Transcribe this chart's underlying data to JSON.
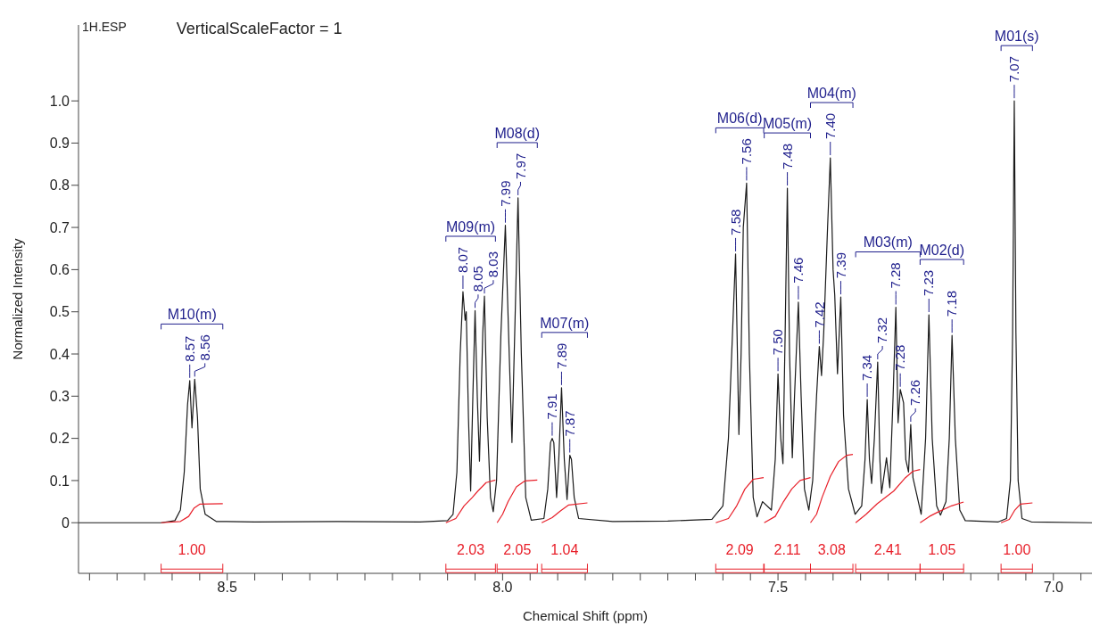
{
  "chart_data": {
    "type": "line",
    "xlabel": "Chemical Shift (ppm)",
    "ylabel": "Normalized Intensity",
    "xlim": [
      8.77,
      6.93
    ],
    "xticks": [
      {
        "value": 8.75,
        "label": null
      },
      {
        "value": 8.7,
        "label": null
      },
      {
        "value": 8.65,
        "label": null
      },
      {
        "value": 8.6,
        "label": null
      },
      {
        "value": 8.55,
        "label": null
      },
      8.5,
      {
        "value": 8.45,
        "label": null
      },
      {
        "value": 8.4,
        "label": null
      },
      {
        "value": 8.35,
        "label": null
      },
      {
        "value": 8.3,
        "label": null
      },
      {
        "value": 8.25,
        "label": null
      },
      {
        "value": 8.2,
        "label": null
      },
      {
        "value": 8.15,
        "label": null
      },
      {
        "value": 8.1,
        "label": null
      },
      {
        "value": 8.05,
        "label": null
      },
      {
        "value": 8,
        "label": "8.0"
      },
      {
        "value": 7.95,
        "label": null
      },
      {
        "value": 7.9,
        "label": null
      },
      {
        "value": 7.85,
        "label": null
      },
      {
        "value": 7.8,
        "label": null
      },
      {
        "value": 7.75,
        "label": null
      },
      {
        "value": 7.7,
        "label": null
      },
      {
        "value": 7.65,
        "label": null
      },
      {
        "value": 7.6,
        "label": null
      },
      {
        "value": 7.55,
        "label": null
      },
      7.5,
      {
        "value": 7.45,
        "label": null
      },
      {
        "value": 7.4,
        "label": null
      },
      {
        "value": 7.35,
        "label": null
      },
      {
        "value": 7.3,
        "label": null
      },
      {
        "value": 7.25,
        "label": null
      },
      {
        "value": 7.2,
        "label": null
      },
      {
        "value": 7.15,
        "label": null
      },
      {
        "value": 7.1,
        "label": null
      },
      {
        "value": 7.05,
        "label": null
      },
      {
        "value": 7,
        "label": "7.0"
      },
      {
        "value": 6.95,
        "label": null
      }
    ],
    "ylim": [
      -0.12,
      1.18
    ],
    "yticks": [
      0,
      0.1,
      0.2,
      0.3,
      0.4,
      0.5,
      0.6,
      0.7,
      0.8,
      0.9,
      {
        "value": 1,
        "label": "1.0"
      }
    ],
    "marker": "none",
    "line_style": "solid",
    "series": [
      {
        "color": "#1a1a1a",
        "x": [
          8.77,
          8.62,
          8.595,
          8.585,
          8.578,
          8.572,
          8.568,
          8.564,
          8.559,
          8.554,
          8.549,
          8.54,
          8.52,
          8.45,
          8.3,
          8.15,
          8.1,
          8.09,
          8.083,
          8.077,
          8.072,
          8.068,
          8.066,
          8.062,
          8.058,
          8.054,
          8.05,
          8.046,
          8.042,
          8.036,
          8.033,
          8.028,
          8.022,
          8.017,
          8.011,
          8.003,
          7.995,
          7.988,
          7.983,
          7.978,
          7.972,
          7.966,
          7.958,
          7.948,
          7.925,
          7.918,
          7.913,
          7.91,
          7.907,
          7.902,
          7.898,
          7.893,
          7.888,
          7.883,
          7.878,
          7.875,
          7.87,
          7.862,
          7.8,
          7.7,
          7.62,
          7.6,
          7.59,
          7.577,
          7.571,
          7.567,
          7.563,
          7.557,
          7.552,
          7.545,
          7.538,
          7.528,
          7.512,
          7.505,
          7.5,
          7.495,
          7.491,
          7.487,
          7.483,
          7.479,
          7.474,
          7.47,
          7.463,
          7.458,
          7.452,
          7.444,
          7.437,
          7.43,
          7.425,
          7.421,
          7.417,
          7.41,
          7.405,
          7.4,
          7.397,
          7.392,
          7.386,
          7.381,
          7.372,
          7.36,
          7.348,
          7.342,
          7.338,
          7.334,
          7.33,
          7.325,
          7.319,
          7.315,
          7.312,
          7.303,
          7.297,
          7.291,
          7.286,
          7.282,
          7.278,
          7.272,
          7.268,
          7.263,
          7.259,
          7.255,
          7.24,
          7.232,
          7.226,
          7.22,
          7.212,
          7.205,
          7.195,
          7.189,
          7.184,
          7.178,
          7.17,
          7.16,
          7.1,
          7.085,
          7.078,
          7.074,
          7.071,
          7.068,
          7.064,
          7.057,
          7.04,
          6.93
        ],
        "values": [
          0,
          0,
          0.005,
          0.03,
          0.12,
          0.28,
          0.337,
          0.225,
          0.34,
          0.25,
          0.08,
          0.02,
          0.003,
          0.002,
          0.003,
          0.002,
          0.005,
          0.02,
          0.12,
          0.4,
          0.548,
          0.48,
          0.5,
          0.25,
          0.075,
          0.3,
          0.503,
          0.3,
          0.146,
          0.45,
          0.537,
          0.25,
          0.06,
          0.026,
          0.1,
          0.45,
          0.705,
          0.4,
          0.19,
          0.45,
          0.77,
          0.4,
          0.06,
          0.006,
          0.01,
          0.08,
          0.19,
          0.2,
          0.19,
          0.06,
          0.15,
          0.32,
          0.15,
          0.055,
          0.16,
          0.15,
          0.06,
          0.01,
          0.003,
          0.004,
          0.008,
          0.04,
          0.2,
          0.637,
          0.209,
          0.4,
          0.7,
          0.805,
          0.4,
          0.06,
          0.014,
          0.05,
          0.03,
          0.15,
          0.353,
          0.2,
          0.14,
          0.45,
          0.793,
          0.4,
          0.154,
          0.3,
          0.523,
          0.3,
          0.08,
          0.03,
          0.1,
          0.3,
          0.418,
          0.349,
          0.45,
          0.7,
          0.865,
          0.6,
          0.54,
          0.353,
          0.535,
          0.255,
          0.08,
          0.02,
          0.04,
          0.15,
          0.292,
          0.15,
          0.093,
          0.2,
          0.381,
          0.15,
          0.07,
          0.154,
          0.083,
          0.3,
          0.511,
          0.237,
          0.316,
          0.284,
          0.15,
          0.12,
          0.233,
          0.107,
          0.02,
          0.2,
          0.493,
          0.2,
          0.04,
          0.018,
          0.05,
          0.2,
          0.444,
          0.2,
          0.03,
          0.005,
          0.002,
          0.01,
          0.1,
          0.45,
          1.0,
          0.45,
          0.1,
          0.01,
          0.002,
          0
        ]
      },
      {
        "color": "#e8202a",
        "x": [
          8.62,
          8.585,
          8.57,
          8.56,
          8.55,
          8.508
        ],
        "values": [
          0,
          0.003,
          0.015,
          0.035,
          0.044,
          0.045
        ]
      },
      {
        "color": "#e8202a",
        "x": [
          8.103,
          8.085,
          8.07,
          8.055,
          8.045,
          8.03,
          8.013
        ],
        "values": [
          0,
          0.01,
          0.04,
          0.06,
          0.075,
          0.095,
          0.101
        ]
      },
      {
        "color": "#e8202a",
        "x": [
          8.01,
          8.0,
          7.99,
          7.975,
          7.96,
          7.937
        ],
        "values": [
          0,
          0.02,
          0.05,
          0.085,
          0.099,
          0.101
        ]
      },
      {
        "color": "#e8202a",
        "x": [
          7.929,
          7.91,
          7.895,
          7.88,
          7.846
        ],
        "values": [
          0,
          0.012,
          0.028,
          0.042,
          0.047
        ]
      },
      {
        "color": "#e8202a",
        "x": [
          7.613,
          7.59,
          7.575,
          7.56,
          7.545,
          7.526
        ],
        "values": [
          0,
          0.01,
          0.04,
          0.08,
          0.103,
          0.107
        ]
      },
      {
        "color": "#e8202a",
        "x": [
          7.525,
          7.505,
          7.49,
          7.475,
          7.46,
          7.441
        ],
        "values": [
          0,
          0.015,
          0.05,
          0.08,
          0.1,
          0.107
        ]
      },
      {
        "color": "#e8202a",
        "x": [
          7.441,
          7.43,
          7.42,
          7.405,
          7.39,
          7.375,
          7.364
        ],
        "values": [
          0,
          0.02,
          0.06,
          0.11,
          0.145,
          0.16,
          0.162
        ]
      },
      {
        "color": "#e8202a",
        "x": [
          7.359,
          7.34,
          7.32,
          7.29,
          7.27,
          7.255,
          7.242
        ],
        "values": [
          0,
          0.02,
          0.045,
          0.075,
          0.105,
          0.122,
          0.126
        ]
      },
      {
        "color": "#e8202a",
        "x": [
          7.242,
          7.225,
          7.21,
          7.185,
          7.163
        ],
        "values": [
          0,
          0.015,
          0.025,
          0.04,
          0.049
        ]
      },
      {
        "color": "#e8202a",
        "x": [
          7.095,
          7.08,
          7.07,
          7.06,
          7.038
        ],
        "values": [
          0,
          0.008,
          0.03,
          0.044,
          0.047
        ]
      }
    ],
    "annotations": [
      "1H.ESP",
      "VerticalScaleFactor = 1",
      "M10(m)",
      "M09(m)",
      "M08(d)",
      "M07(m)",
      "M06(d)",
      "M05(m)",
      "M04(m)",
      "M03(m)",
      "M02(d)",
      "M01(s)",
      {
        "text": "1.00",
        "x": 8.62,
        "y": 0
      },
      {
        "text": "2.03",
        "x": 8.103,
        "y": 0
      },
      {
        "text": "2.05",
        "x": 8.01,
        "y": 0
      },
      {
        "text": "1.04",
        "x": 7.929,
        "y": 0
      },
      {
        "text": "2.09",
        "x": 7.613,
        "y": 0
      },
      {
        "text": "2.11",
        "x": 7.525,
        "y": 0
      },
      {
        "text": "3.08",
        "x": 7.441,
        "y": 0
      },
      {
        "text": "2.41",
        "x": 7.359,
        "y": 0
      },
      {
        "text": "1.05",
        "x": 7.242,
        "y": 0
      },
      {
        "text": "1.00",
        "x": 7.095,
        "y": 0
      },
      {
        "text": "8.57",
        "x": 8.568,
        "y": 0.337
      },
      {
        "text": "8.56",
        "x": 8.559,
        "y": 0.34
      },
      {
        "text": "8.07",
        "x": 8.072,
        "y": 0.548
      },
      {
        "text": "8.05",
        "x": 8.05,
        "y": 0.503
      },
      {
        "text": "8.03",
        "x": 8.033,
        "y": 0.537
      },
      {
        "text": "7.99",
        "x": 7.995,
        "y": 0.705
      },
      {
        "text": "7.97",
        "x": 7.972,
        "y": 0.77
      },
      {
        "text": "7.91",
        "x": 7.91,
        "y": 0.2
      },
      {
        "text": "7.89",
        "x": 7.893,
        "y": 0.32
      },
      {
        "text": "7.87",
        "x": 7.878,
        "y": 0.16
      },
      {
        "text": "7.58",
        "x": 7.577,
        "y": 0.637
      },
      {
        "text": "7.56",
        "x": 7.557,
        "y": 0.805
      },
      {
        "text": "7.50",
        "x": 7.5,
        "y": 0.353
      },
      {
        "text": "7.48",
        "x": 7.483,
        "y": 0.793
      },
      {
        "text": "7.46",
        "x": 7.463,
        "y": 0.523
      },
      {
        "text": "7.42",
        "x": 7.425,
        "y": 0.418
      },
      {
        "text": "7.40",
        "x": 7.405,
        "y": 0.865
      },
      {
        "text": "7.39",
        "x": 7.386,
        "y": 0.535
      },
      {
        "text": "7.34",
        "x": 7.338,
        "y": 0.292
      },
      {
        "text": "7.32",
        "x": 7.319,
        "y": 0.381
      },
      {
        "text": "7.28",
        "x": 7.286,
        "y": 0.511
      },
      {
        "text": "7.28",
        "x": 7.278,
        "y": 0.316
      },
      {
        "text": "7.26",
        "x": 7.259,
        "y": 0.233
      },
      {
        "text": "7.23",
        "x": 7.226,
        "y": 0.493
      },
      {
        "text": "7.18",
        "x": 7.184,
        "y": 0.444
      },
      {
        "text": "7.07",
        "x": 7.071,
        "y": 1.0
      }
    ]
  }
}
